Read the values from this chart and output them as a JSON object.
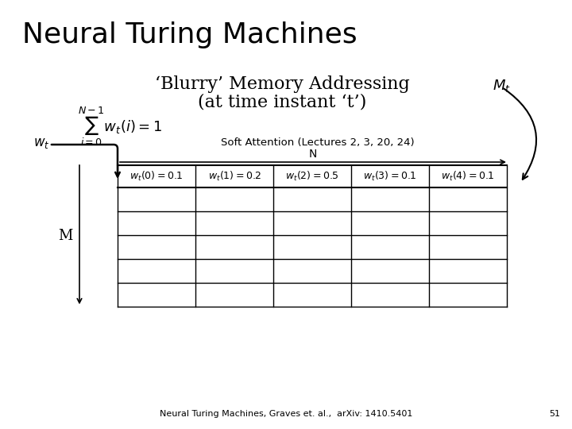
{
  "title": "Neural Turing Machines",
  "subtitle_line1": "‘Blurry’ Memory Addressing",
  "subtitle_line2": "(at time instant ‘t’)",
  "Mt_label": "$M_t$",
  "wt_label": "$w_t$",
  "M_label": "M",
  "N_label": "N",
  "soft_attention_text": "Soft Attention (Lectures 2, 3, 20, 24)",
  "row0_cells": [
    "$w_t(0) = 0.1$",
    "$w_t(1) = 0.2$",
    "$w_t(2) = 0.5$",
    "$w_t(3) = 0.1$",
    "$w_t(4) = 0.1$"
  ],
  "num_cols": 5,
  "num_rows": 5,
  "footer": "Neural Turing Machines, Graves et. al.,  arXiv: 1410.5401",
  "page_num": "51",
  "bg_color": "#ffffff",
  "text_color": "#000000",
  "title_fontsize": 26,
  "subtitle_fontsize": 16,
  "cell_fontsize": 9,
  "label_fontsize": 11,
  "footer_fontsize": 8
}
